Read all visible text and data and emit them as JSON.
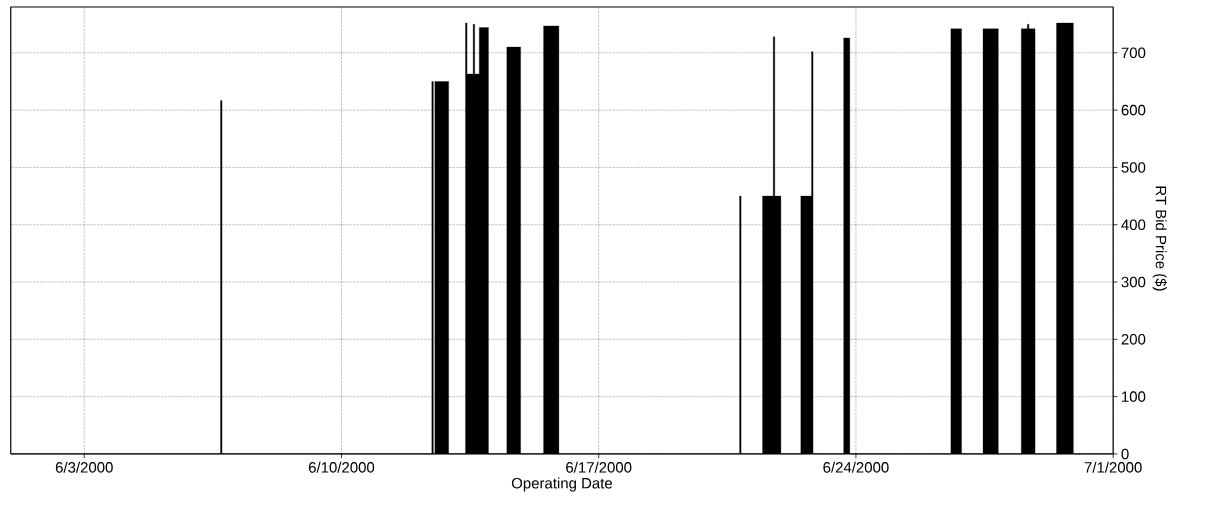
{
  "chart_data": {
    "type": "area",
    "xlabel": "Operating Date",
    "ylabel": "RT Bid Price ($)",
    "xlim": [
      "2000-06-01",
      "2000-07-01"
    ],
    "xticks": [
      {
        "value": "2000-06-03",
        "label": "6/3/2000"
      },
      {
        "value": "2000-06-10",
        "label": "6/10/2000"
      },
      {
        "value": "2000-06-17",
        "label": "6/17/2000"
      },
      {
        "value": "2000-06-24",
        "label": "6/24/2000"
      },
      {
        "value": "2000-07-01",
        "label": "7/1/2000"
      }
    ],
    "ylim": [
      0,
      780
    ],
    "yticks": [
      0,
      100,
      200,
      300,
      400,
      500,
      600,
      700
    ],
    "grid": true,
    "series": [
      {
        "color": "#000000",
        "x": [
          "2000-06-01T00:00",
          "2000-06-06T17:00",
          "2000-06-06T17:00",
          "2000-06-06T18:00",
          "2000-06-06T18:00",
          "2000-06-12T11:00",
          "2000-06-12T11:00",
          "2000-06-12T12:00",
          "2000-06-12T12:00",
          "2000-06-12T13:00",
          "2000-06-12T13:00",
          "2000-06-12T22:00",
          "2000-06-12T22:00",
          "2000-06-13T09:00",
          "2000-06-13T09:00",
          "2000-06-13T10:00",
          "2000-06-13T10:00",
          "2000-06-13T14:00",
          "2000-06-13T14:00",
          "2000-06-13T15:00",
          "2000-06-13T15:00",
          "2000-06-13T18:00",
          "2000-06-13T18:00",
          "2000-06-14T00:00",
          "2000-06-14T00:00",
          "2000-06-14T12:00",
          "2000-06-14T12:00",
          "2000-06-14T21:00",
          "2000-06-14T21:00",
          "2000-06-15T12:00",
          "2000-06-15T12:00",
          "2000-06-15T22:00",
          "2000-06-15T22:00",
          "2000-06-20T20:00",
          "2000-06-20T20:00",
          "2000-06-20T21:00",
          "2000-06-20T21:00",
          "2000-06-21T11:00",
          "2000-06-21T11:00",
          "2000-06-21T18:00",
          "2000-06-21T18:00",
          "2000-06-21T19:00",
          "2000-06-21T19:00",
          "2000-06-21T23:00",
          "2000-06-21T23:00",
          "2000-06-22T12:00",
          "2000-06-22T12:00",
          "2000-06-22T19:00",
          "2000-06-22T19:00",
          "2000-06-22T20:00",
          "2000-06-22T20:00",
          "2000-06-23T16:00",
          "2000-06-23T16:00",
          "2000-06-23T20:00",
          "2000-06-23T20:00",
          "2000-06-26T14:00",
          "2000-06-26T14:00",
          "2000-06-26T21:00",
          "2000-06-26T21:00",
          "2000-06-27T11:00",
          "2000-06-27T11:00",
          "2000-06-27T21:00",
          "2000-06-27T21:00",
          "2000-06-28T12:00",
          "2000-06-28T12:00",
          "2000-06-28T16:00",
          "2000-06-28T16:00",
          "2000-06-28T17:00",
          "2000-06-28T17:00",
          "2000-06-28T21:00",
          "2000-06-28T21:00",
          "2000-06-29T11:00",
          "2000-06-29T11:00",
          "2000-06-29T22:00",
          "2000-06-29T22:00",
          "2000-07-01T00:00"
        ],
        "values": [
          0,
          0,
          617,
          617,
          0,
          0,
          650,
          650,
          0,
          0,
          650,
          650,
          0,
          0,
          752,
          752,
          663,
          663,
          750,
          750,
          663,
          663,
          744,
          744,
          0,
          0,
          710,
          710,
          0,
          0,
          747,
          747,
          0,
          0,
          450,
          450,
          0,
          0,
          450,
          450,
          728,
          728,
          450,
          450,
          0,
          0,
          450,
          450,
          702,
          702,
          0,
          0,
          726,
          726,
          0,
          0,
          742,
          742,
          0,
          0,
          742,
          742,
          0,
          0,
          742,
          742,
          750,
          750,
          742,
          742,
          0,
          0,
          752,
          752,
          0,
          0
        ]
      }
    ]
  }
}
